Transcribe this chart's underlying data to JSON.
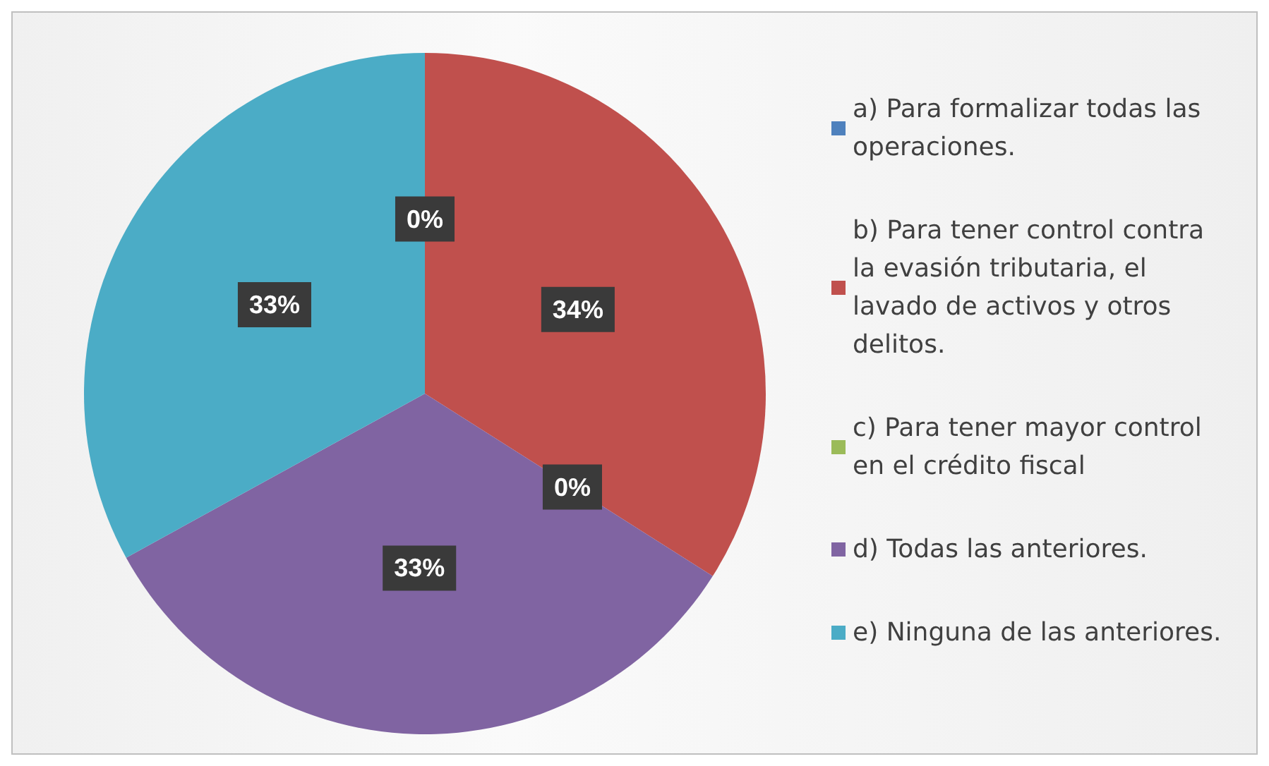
{
  "chart_data": {
    "type": "pie",
    "categories": [
      "a) Para formalizar todas las operaciones.",
      "b) Para tener control contra la evasión tributaria, el lavado de activos y otros delitos.",
      "c) Para tener mayor control en el crédito fiscal",
      "d) Todas las anteriores.",
      "e) Ninguna de las anteriores."
    ],
    "values": [
      0,
      34,
      0,
      33,
      33
    ],
    "value_labels": [
      "0%",
      "34%",
      "0%",
      "33%",
      "33%"
    ],
    "colors": [
      "#4f81bd",
      "#c0504d",
      "#9bbb59",
      "#8064a2",
      "#4bacc6"
    ],
    "legend": "right"
  }
}
